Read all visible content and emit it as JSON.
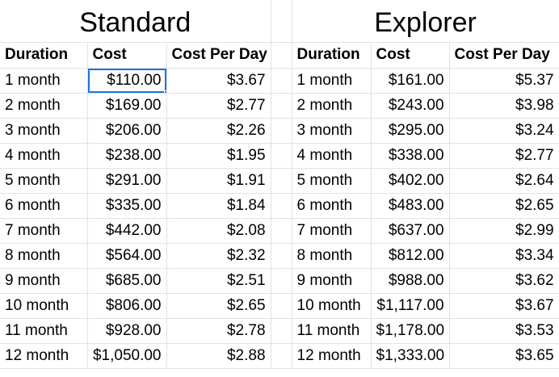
{
  "titles": {
    "standard": "Standard",
    "explorer": "Explorer"
  },
  "headers": {
    "duration": "Duration",
    "cost": "Cost",
    "cost_per_day": "Cost Per Day"
  },
  "selection": {
    "table": "standard",
    "row": 0,
    "column": "cost",
    "color": "#1a73e8"
  },
  "standard_rows": [
    {
      "duration": "1 month",
      "cost": "$110.00",
      "cpd": "$3.67"
    },
    {
      "duration": "2 month",
      "cost": "$169.00",
      "cpd": "$2.77"
    },
    {
      "duration": "3 month",
      "cost": "$206.00",
      "cpd": "$2.26"
    },
    {
      "duration": "4 month",
      "cost": "$238.00",
      "cpd": "$1.95"
    },
    {
      "duration": "5 month",
      "cost": "$291.00",
      "cpd": "$1.91"
    },
    {
      "duration": "6 month",
      "cost": "$335.00",
      "cpd": "$1.84"
    },
    {
      "duration": "7 month",
      "cost": "$442.00",
      "cpd": "$2.08"
    },
    {
      "duration": "8 month",
      "cost": "$564.00",
      "cpd": "$2.32"
    },
    {
      "duration": "9 month",
      "cost": "$685.00",
      "cpd": "$2.51"
    },
    {
      "duration": "10 month",
      "cost": "$806.00",
      "cpd": "$2.65"
    },
    {
      "duration": "11 month",
      "cost": "$928.00",
      "cpd": "$2.78"
    },
    {
      "duration": "12 month",
      "cost": "$1,050.00",
      "cpd": "$2.88"
    }
  ],
  "explorer_rows": [
    {
      "duration": "1 month",
      "cost": "$161.00",
      "cpd": "$5.37"
    },
    {
      "duration": "2 month",
      "cost": "$243.00",
      "cpd": "$3.98"
    },
    {
      "duration": "3 month",
      "cost": "$295.00",
      "cpd": "$3.24"
    },
    {
      "duration": "4 month",
      "cost": "$338.00",
      "cpd": "$2.77"
    },
    {
      "duration": "5 month",
      "cost": "$402.00",
      "cpd": "$2.64"
    },
    {
      "duration": "6 month",
      "cost": "$483.00",
      "cpd": "$2.65"
    },
    {
      "duration": "7 month",
      "cost": "$637.00",
      "cpd": "$2.99"
    },
    {
      "duration": "8 month",
      "cost": "$812.00",
      "cpd": "$3.34"
    },
    {
      "duration": "9 month",
      "cost": "$988.00",
      "cpd": "$3.62"
    },
    {
      "duration": "10 month",
      "cost": "$1,117.00",
      "cpd": "$3.67"
    },
    {
      "duration": "11 month",
      "cost": "$1,178.00",
      "cpd": "$3.53"
    },
    {
      "duration": "12 month",
      "cost": "$1,333.00",
      "cpd": "$3.65"
    }
  ]
}
